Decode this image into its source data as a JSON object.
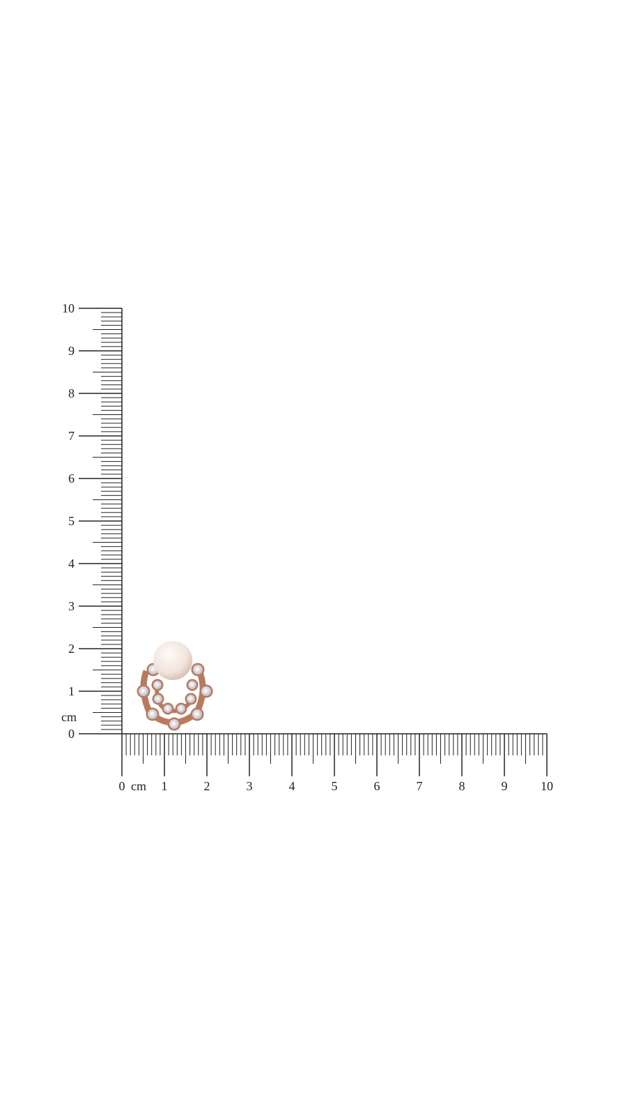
{
  "ruler": {
    "unit": "cm",
    "vertical_labels": [
      "0",
      "1",
      "2",
      "3",
      "4",
      "5",
      "6",
      "7",
      "8",
      "9",
      "10"
    ],
    "horizontal_labels": [
      "0",
      "1",
      "2",
      "3",
      "4",
      "5",
      "6",
      "7",
      "8",
      "9",
      "10"
    ],
    "color": "#222222"
  },
  "product": {
    "description_icon": "pearl-earring",
    "pearl_color": "#f3e8e2",
    "metal_color": "#b87a5e",
    "stone_color": "#e4e4ea"
  }
}
